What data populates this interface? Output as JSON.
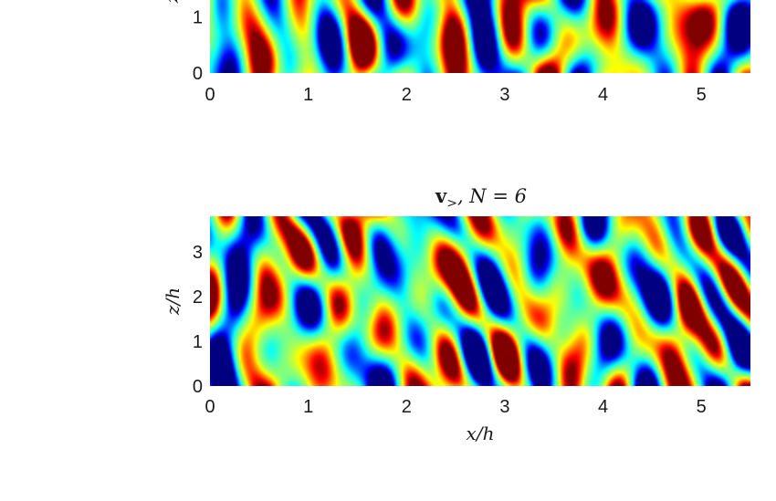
{
  "chart_data": [
    {
      "type": "heatmap",
      "title": "",
      "xlabel": "",
      "ylabel": "z",
      "x_ticks": [
        "0",
        "1",
        "2",
        "3",
        "4",
        "5"
      ],
      "y_ticks": [
        "0",
        "1"
      ],
      "xlim": [
        0,
        5.5
      ],
      "ylim": [
        0,
        3.8
      ],
      "visible_ylim": [
        0,
        1.3
      ],
      "colormap": "jet",
      "seed": 7
    },
    {
      "type": "heatmap",
      "title_main": "v",
      "title_sub": ">",
      "title_rest": ", N = 6",
      "xlabel": "x/h",
      "ylabel": "z/h",
      "x_ticks": [
        "0",
        "1",
        "2",
        "3",
        "4",
        "5"
      ],
      "y_ticks": [
        "0",
        "1",
        "2",
        "3"
      ],
      "xlim": [
        0,
        5.5
      ],
      "ylim": [
        0,
        3.8
      ],
      "colormap": "jet",
      "seed": 19
    }
  ]
}
